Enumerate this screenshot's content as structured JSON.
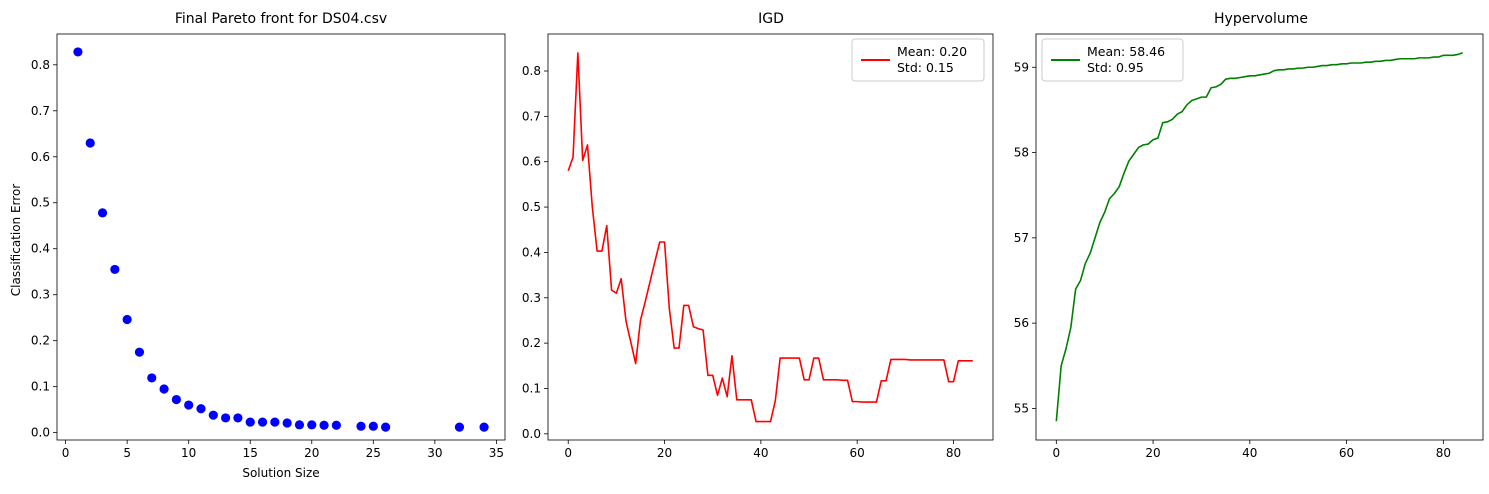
{
  "chart_data": [
    {
      "type": "scatter",
      "title": "Final Pareto front for DS04.csv",
      "xlabel": "Solution Size",
      "ylabel": "Classification Error",
      "xlim": [
        -0.7,
        35.7
      ],
      "ylim": [
        -0.016,
        0.867
      ],
      "xticks": [
        0,
        5,
        10,
        15,
        20,
        25,
        30,
        35
      ],
      "yticks": [
        0.0,
        0.1,
        0.2,
        0.3,
        0.4,
        0.5,
        0.6,
        0.7,
        0.8
      ],
      "ytick_labels": [
        "0.0",
        "0.1",
        "0.2",
        "0.3",
        "0.4",
        "0.5",
        "0.6",
        "0.7",
        "0.8"
      ],
      "color": "#0000ff",
      "series": [
        {
          "x": [
            1,
            2,
            3,
            4,
            5,
            6,
            7,
            8,
            9,
            10,
            11,
            12,
            13,
            14,
            15,
            16,
            17,
            18,
            19,
            20,
            21,
            22,
            24,
            25,
            26,
            32,
            34
          ],
          "y": [
            0.828,
            0.63,
            0.478,
            0.355,
            0.246,
            0.175,
            0.119,
            0.095,
            0.072,
            0.06,
            0.052,
            0.038,
            0.032,
            0.032,
            0.023,
            0.023,
            0.023,
            0.021,
            0.017,
            0.017,
            0.016,
            0.016,
            0.014,
            0.014,
            0.012,
            0.012,
            0.012
          ]
        }
      ]
    },
    {
      "type": "line",
      "title": "IGD",
      "xlabel": "",
      "ylabel": "",
      "xlim": [
        -4.2,
        88.2
      ],
      "ylim": [
        -0.0136,
        0.8816
      ],
      "xticks": [
        0,
        20,
        40,
        60,
        80
      ],
      "yticks": [
        0.0,
        0.1,
        0.2,
        0.3,
        0.4,
        0.5,
        0.6,
        0.7,
        0.8
      ],
      "ytick_labels": [
        "0.0",
        "0.1",
        "0.2",
        "0.3",
        "0.4",
        "0.5",
        "0.6",
        "0.7",
        "0.8"
      ],
      "legend": {
        "position": "top-right",
        "lines": [
          "Mean: 0.20",
          "Std: 0.15"
        ]
      },
      "series": [
        {
          "color": "#ff0000",
          "x": [
            0,
            1,
            2,
            3,
            4,
            5,
            6,
            7,
            8,
            9,
            10,
            11,
            12,
            13,
            14,
            15,
            16,
            17,
            18,
            19,
            20,
            21,
            22,
            23,
            24,
            25,
            26,
            27,
            28,
            29,
            30,
            31,
            32,
            33,
            34,
            35,
            36,
            37,
            38,
            39,
            40,
            41,
            42,
            43,
            44,
            45,
            46,
            47,
            48,
            49,
            50,
            51,
            52,
            53,
            54,
            55,
            56,
            57,
            58,
            59,
            60,
            61,
            62,
            63,
            64,
            65,
            66,
            67,
            68,
            69,
            70,
            71,
            72,
            73,
            74,
            75,
            76,
            77,
            78,
            79,
            80,
            81,
            82,
            83,
            84
          ],
          "y": [
            0.58,
            0.61,
            0.84,
            0.603,
            0.637,
            0.5,
            0.403,
            0.403,
            0.459,
            0.317,
            0.31,
            0.342,
            0.248,
            0.202,
            0.155,
            0.25,
            0.292,
            0.336,
            0.38,
            0.423,
            0.423,
            0.276,
            0.189,
            0.189,
            0.283,
            0.283,
            0.236,
            0.232,
            0.229,
            0.129,
            0.129,
            0.085,
            0.123,
            0.082,
            0.172,
            0.075,
            0.075,
            0.075,
            0.075,
            0.027,
            0.027,
            0.027,
            0.027,
            0.073,
            0.167,
            0.167,
            0.167,
            0.167,
            0.167,
            0.119,
            0.119,
            0.167,
            0.167,
            0.119,
            0.119,
            0.119,
            0.119,
            0.118,
            0.118,
            0.071,
            0.071,
            0.07,
            0.07,
            0.07,
            0.07,
            0.117,
            0.117,
            0.164,
            0.164,
            0.164,
            0.164,
            0.163,
            0.163,
            0.163,
            0.163,
            0.163,
            0.163,
            0.163,
            0.163,
            0.115,
            0.115,
            0.161,
            0.161,
            0.161,
            0.161
          ]
        }
      ]
    },
    {
      "type": "line",
      "title": "Hypervolume",
      "xlabel": "",
      "ylabel": "",
      "xlim": [
        -4.2,
        88.2
      ],
      "ylim": [
        54.63,
        59.39
      ],
      "xticks": [
        0,
        20,
        40,
        60,
        80
      ],
      "yticks": [
        55,
        56,
        57,
        58,
        59
      ],
      "ytick_labels": [
        "55",
        "56",
        "57",
        "58",
        "59"
      ],
      "legend": {
        "position": "top-left",
        "lines": [
          "Mean: 58.46",
          "Std: 0.95"
        ]
      },
      "series": [
        {
          "color": "#008000",
          "x": [
            0,
            1,
            2,
            3,
            4,
            5,
            6,
            7,
            8,
            9,
            10,
            11,
            12,
            13,
            14,
            15,
            16,
            17,
            18,
            19,
            20,
            21,
            22,
            23,
            24,
            25,
            26,
            27,
            28,
            29,
            30,
            31,
            32,
            33,
            34,
            35,
            36,
            37,
            38,
            39,
            40,
            41,
            42,
            43,
            44,
            45,
            46,
            47,
            48,
            49,
            50,
            51,
            52,
            53,
            54,
            55,
            56,
            57,
            58,
            59,
            60,
            61,
            62,
            63,
            64,
            65,
            66,
            67,
            68,
            69,
            70,
            71,
            72,
            73,
            74,
            75,
            76,
            77,
            78,
            79,
            80,
            81,
            82,
            83,
            84
          ],
          "y": [
            54.85,
            55.5,
            55.7,
            55.95,
            56.4,
            56.5,
            56.7,
            56.82,
            57.0,
            57.18,
            57.3,
            57.46,
            57.52,
            57.6,
            57.76,
            57.9,
            57.98,
            58.06,
            58.09,
            58.1,
            58.15,
            58.17,
            58.35,
            58.36,
            58.39,
            58.45,
            58.48,
            58.56,
            58.61,
            58.63,
            58.65,
            58.65,
            58.76,
            58.77,
            58.8,
            58.86,
            58.87,
            58.87,
            58.88,
            58.89,
            58.9,
            58.9,
            58.91,
            58.92,
            58.93,
            58.96,
            58.97,
            58.97,
            58.98,
            58.98,
            58.99,
            58.99,
            59.0,
            59.0,
            59.01,
            59.02,
            59.02,
            59.03,
            59.03,
            59.04,
            59.04,
            59.05,
            59.05,
            59.05,
            59.06,
            59.06,
            59.07,
            59.07,
            59.08,
            59.08,
            59.09,
            59.1,
            59.1,
            59.1,
            59.1,
            59.11,
            59.11,
            59.11,
            59.12,
            59.12,
            59.14,
            59.14,
            59.14,
            59.15,
            59.17
          ]
        }
      ]
    }
  ]
}
